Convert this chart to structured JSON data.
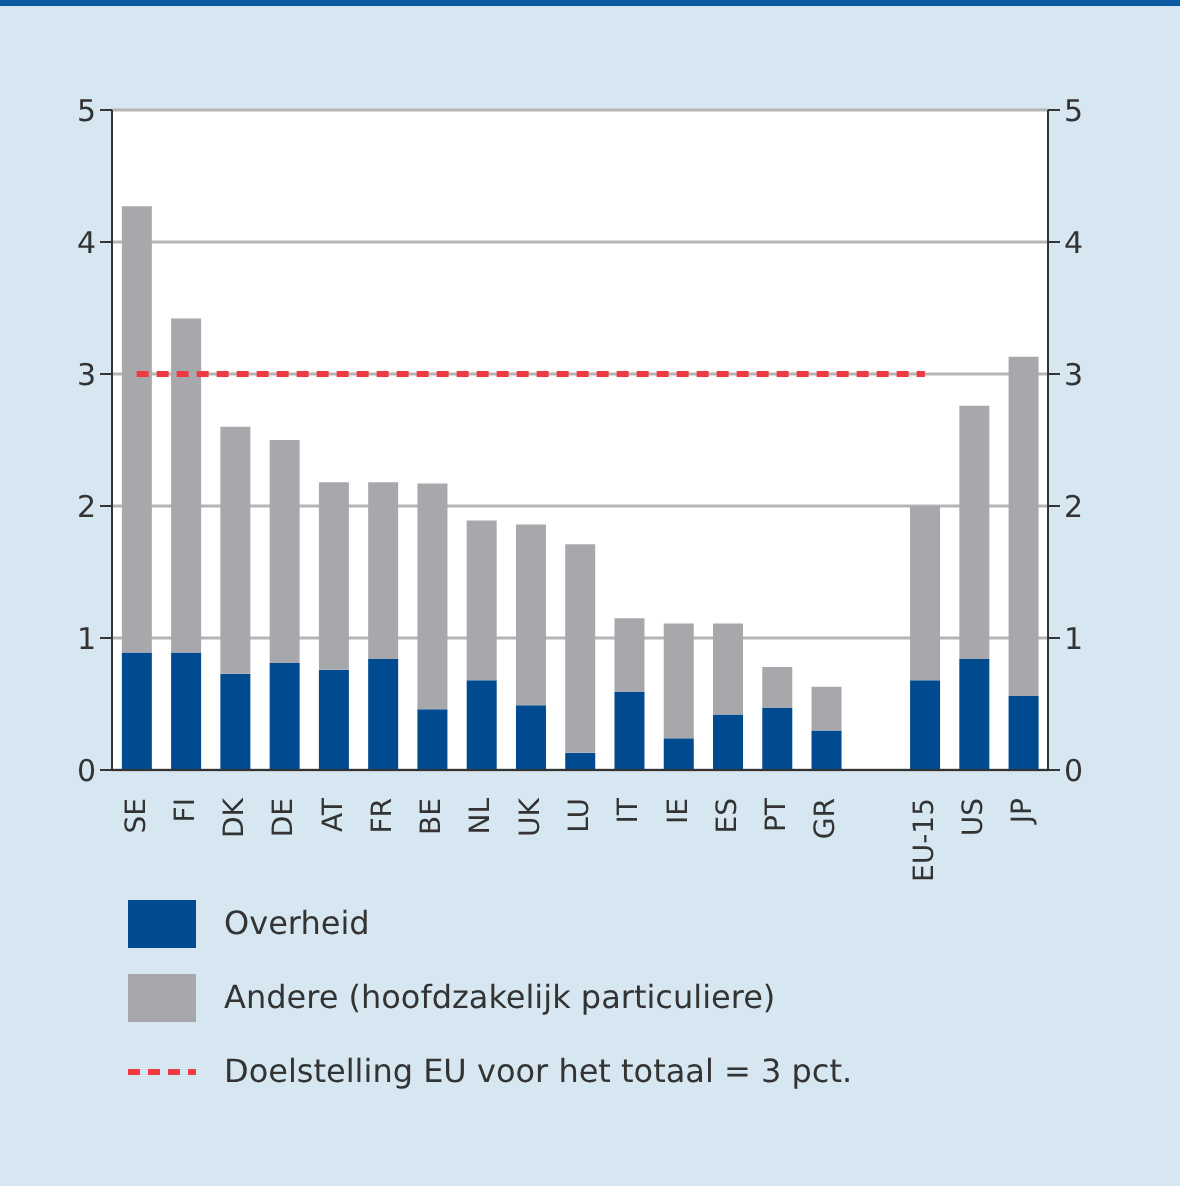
{
  "chart_data": {
    "type": "bar",
    "stacked": true,
    "categories": [
      "SE",
      "FI",
      "DK",
      "DE",
      "AT",
      "FR",
      "BE",
      "NL",
      "UK",
      "LU",
      "IT",
      "IE",
      "ES",
      "PT",
      "GR",
      null,
      "EU-15",
      "US",
      "JP"
    ],
    "series": [
      {
        "name": "Overheid",
        "color": "#004a8f",
        "values": [
          0.89,
          0.89,
          0.73,
          0.81,
          0.76,
          0.84,
          0.46,
          0.68,
          0.49,
          0.13,
          0.59,
          0.24,
          0.42,
          0.47,
          0.3,
          null,
          0.68,
          0.84,
          0.56
        ]
      },
      {
        "name": "Andere (hoofdzakelijk particuliere)",
        "color": "#a7a8ab",
        "values": [
          3.38,
          2.53,
          1.87,
          1.69,
          1.42,
          1.34,
          1.71,
          1.21,
          1.37,
          1.58,
          0.56,
          0.87,
          0.69,
          0.31,
          0.33,
          null,
          1.32,
          1.92,
          2.57
        ]
      },
      {
        "name": "Doelstelling EU voor het totaal = 3 pct.",
        "type": "line",
        "color": "#ee3b43",
        "line_style": "dashed",
        "marker": "none",
        "values": [
          3,
          3,
          3,
          3,
          3,
          3,
          3,
          3,
          3,
          3,
          3,
          3,
          3,
          3,
          3,
          3,
          3,
          null,
          null
        ]
      }
    ],
    "ylim": [
      0,
      5
    ],
    "yticks": [
      0,
      1,
      2,
      3,
      4,
      5
    ],
    "y2lim": [
      0,
      5
    ],
    "y2ticks": [
      0,
      1,
      2,
      3,
      4,
      5
    ],
    "grid": "y",
    "legend": "bottom"
  }
}
